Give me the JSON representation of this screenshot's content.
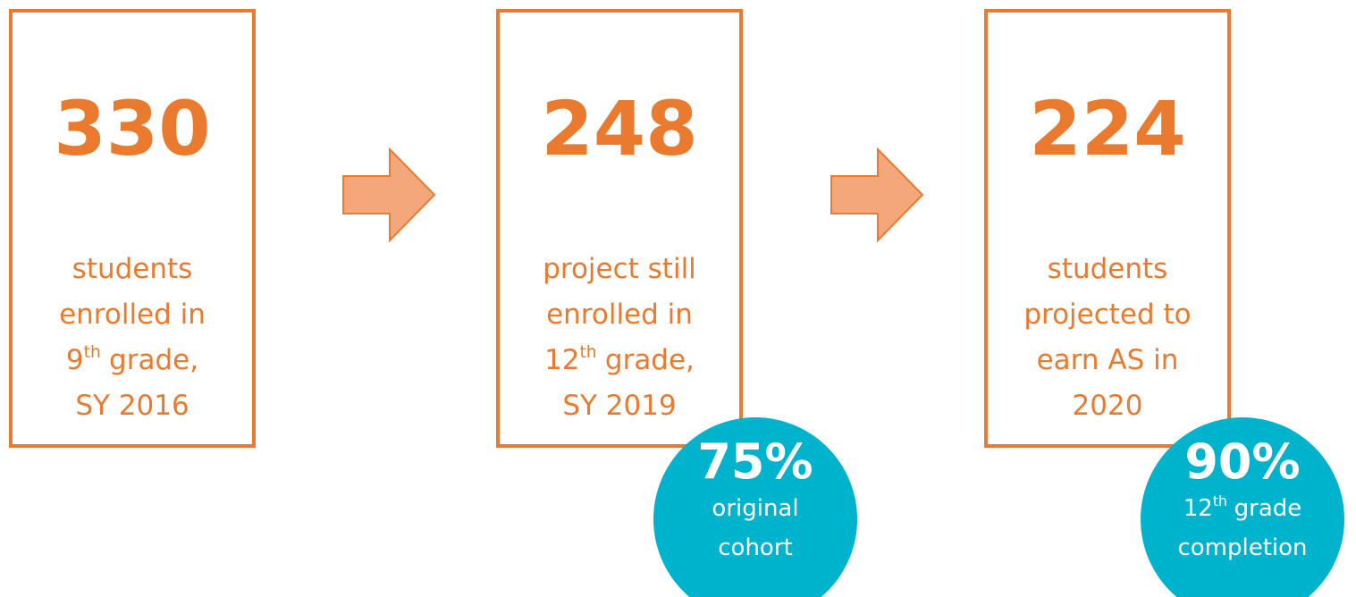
{
  "boxes": [
    {
      "number": "330",
      "lines": [
        {
          "text": "students"
        },
        {
          "text": "enrolled in"
        },
        {
          "base": "9",
          "sup": "th",
          "rest": "grade,"
        },
        {
          "text": "SY 2016"
        }
      ]
    },
    {
      "number": "248",
      "lines": [
        {
          "text": "project still"
        },
        {
          "text": "enrolled in"
        },
        {
          "base": "12",
          "sup": "th",
          "rest": "grade,"
        },
        {
          "text": "SY 2019"
        }
      ]
    },
    {
      "number": "224",
      "lines": [
        {
          "text": "students"
        },
        {
          "text": "projected to"
        },
        {
          "text": "earn AS in"
        },
        {
          "text": "2020"
        }
      ]
    }
  ],
  "badges": [
    {
      "percent": "75%",
      "lines": [
        {
          "text": "original"
        },
        {
          "text": "cohort"
        }
      ]
    },
    {
      "percent": "90%",
      "lines": [
        {
          "base": "12",
          "sup": "th",
          "rest": "grade"
        },
        {
          "text": "completion"
        }
      ]
    }
  ]
}
